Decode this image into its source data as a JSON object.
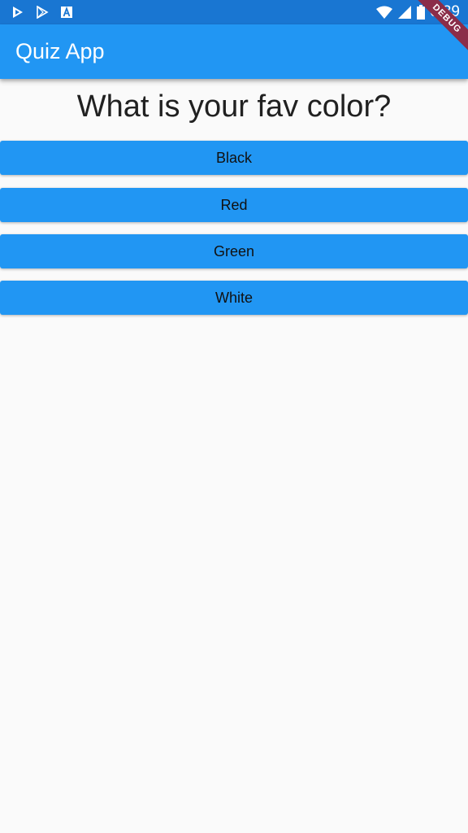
{
  "status_bar": {
    "time": "6:39",
    "left_icons": [
      "play-store-icon",
      "play-store-icon",
      "app-a-icon"
    ],
    "right_icons": [
      "wifi-icon",
      "cellular-signal-icon",
      "battery-icon"
    ]
  },
  "app_bar": {
    "title": "Quiz App"
  },
  "debug_banner": {
    "label": "DEBUG"
  },
  "quiz": {
    "question": "What is your fav color?",
    "answers": [
      "Black",
      "Red",
      "Green",
      "White"
    ]
  },
  "colors": {
    "status_bar": "#1976d2",
    "app_bar": "#2196f3",
    "button": "#2196f3",
    "background": "#fafafa",
    "debug_banner": "#8b2d49"
  }
}
